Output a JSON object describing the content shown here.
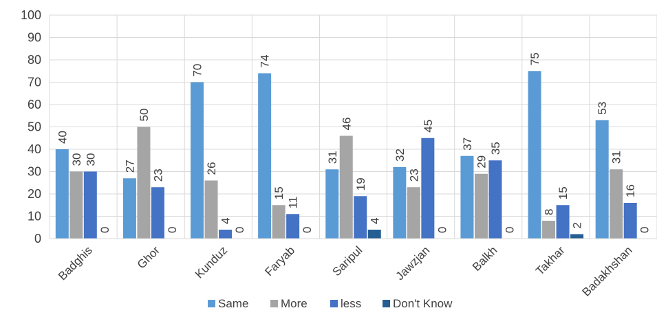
{
  "chart_data": {
    "type": "bar",
    "categories": [
      "Badghis",
      "Ghor",
      "Kunduz",
      "Faryab",
      "Saripul",
      "Jawzjan",
      "Balkh",
      "Takhar",
      "Badakhshan"
    ],
    "series": [
      {
        "name": "Same",
        "color": "#5b9bd5",
        "values": [
          40,
          27,
          70,
          74,
          31,
          32,
          37,
          75,
          53
        ]
      },
      {
        "name": "More",
        "color": "#a5a5a5",
        "values": [
          30,
          50,
          26,
          15,
          46,
          23,
          29,
          8,
          31
        ]
      },
      {
        "name": "less",
        "color": "#4472c4",
        "values": [
          30,
          23,
          4,
          11,
          19,
          45,
          35,
          15,
          16
        ]
      },
      {
        "name": "Don't Know",
        "color": "#255e91",
        "values": [
          0,
          0,
          0,
          0,
          4,
          0,
          0,
          2,
          0
        ]
      }
    ],
    "ylim": [
      0,
      100
    ],
    "yticks": [
      "0",
      "10",
      "20",
      "30",
      "40",
      "50",
      "60",
      "70",
      "80",
      "90",
      "100"
    ],
    "grid": true,
    "legend_position": "bottom",
    "data_labels": true
  }
}
